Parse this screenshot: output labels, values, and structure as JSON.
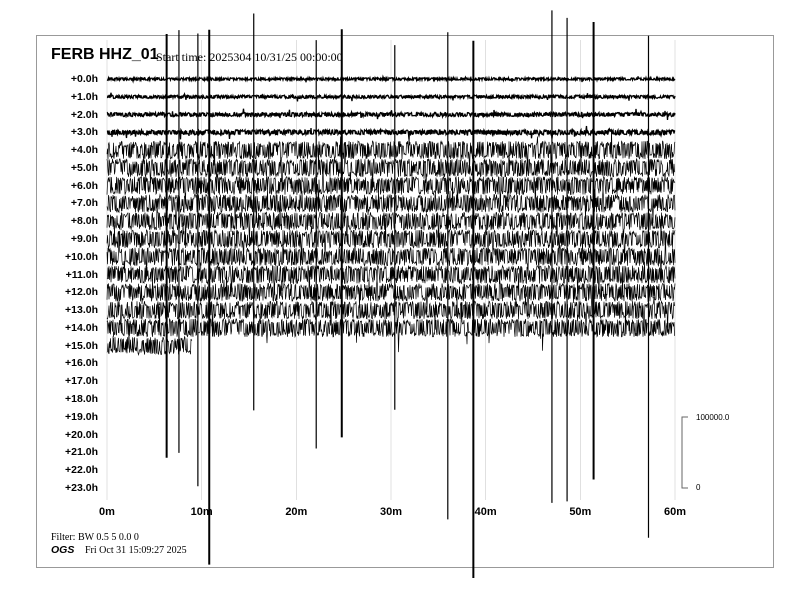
{
  "header": {
    "station": "FERB HHZ_01",
    "start_time": "Start time: 2025304  10/31/25 00:00:00"
  },
  "chart_data": {
    "type": "line",
    "title": "FERB HHZ_01",
    "row_labels": [
      "+0.0h",
      "+1.0h",
      "+2.0h",
      "+3.0h",
      "+4.0h",
      "+5.0h",
      "+6.0h",
      "+7.0h",
      "+8.0h",
      "+9.0h",
      "+10.0h",
      "+11.0h",
      "+12.0h",
      "+13.0h",
      "+14.0h",
      "+15.0h",
      "+16.0h",
      "+17.0h",
      "+18.0h",
      "+19.0h",
      "+20.0h",
      "+21.0h",
      "+22.0h",
      "+23.0h"
    ],
    "x_tick_labels": [
      "0m",
      "10m",
      "20m",
      "30m",
      "40m",
      "50m",
      "60m"
    ],
    "x_ticks": [
      0,
      10,
      20,
      30,
      40,
      50,
      60
    ],
    "xlim": [
      0,
      60
    ],
    "rows_with_data": 15.15,
    "scale_labels": {
      "top": "100000.0",
      "bottom": "0"
    },
    "spike_minutes": [
      6.3,
      7.6,
      9.6,
      10.8,
      15.5,
      22.1,
      24.8,
      30.4,
      36.0,
      38.7,
      47.0,
      48.6,
      51.4,
      57.2
    ],
    "trace_color": "#000000"
  },
  "footer": {
    "filter": "Filter: BW 0.5 5 0.0 0",
    "org": "OGS",
    "printed": "Fri Oct 31 15:09:27 2025"
  }
}
